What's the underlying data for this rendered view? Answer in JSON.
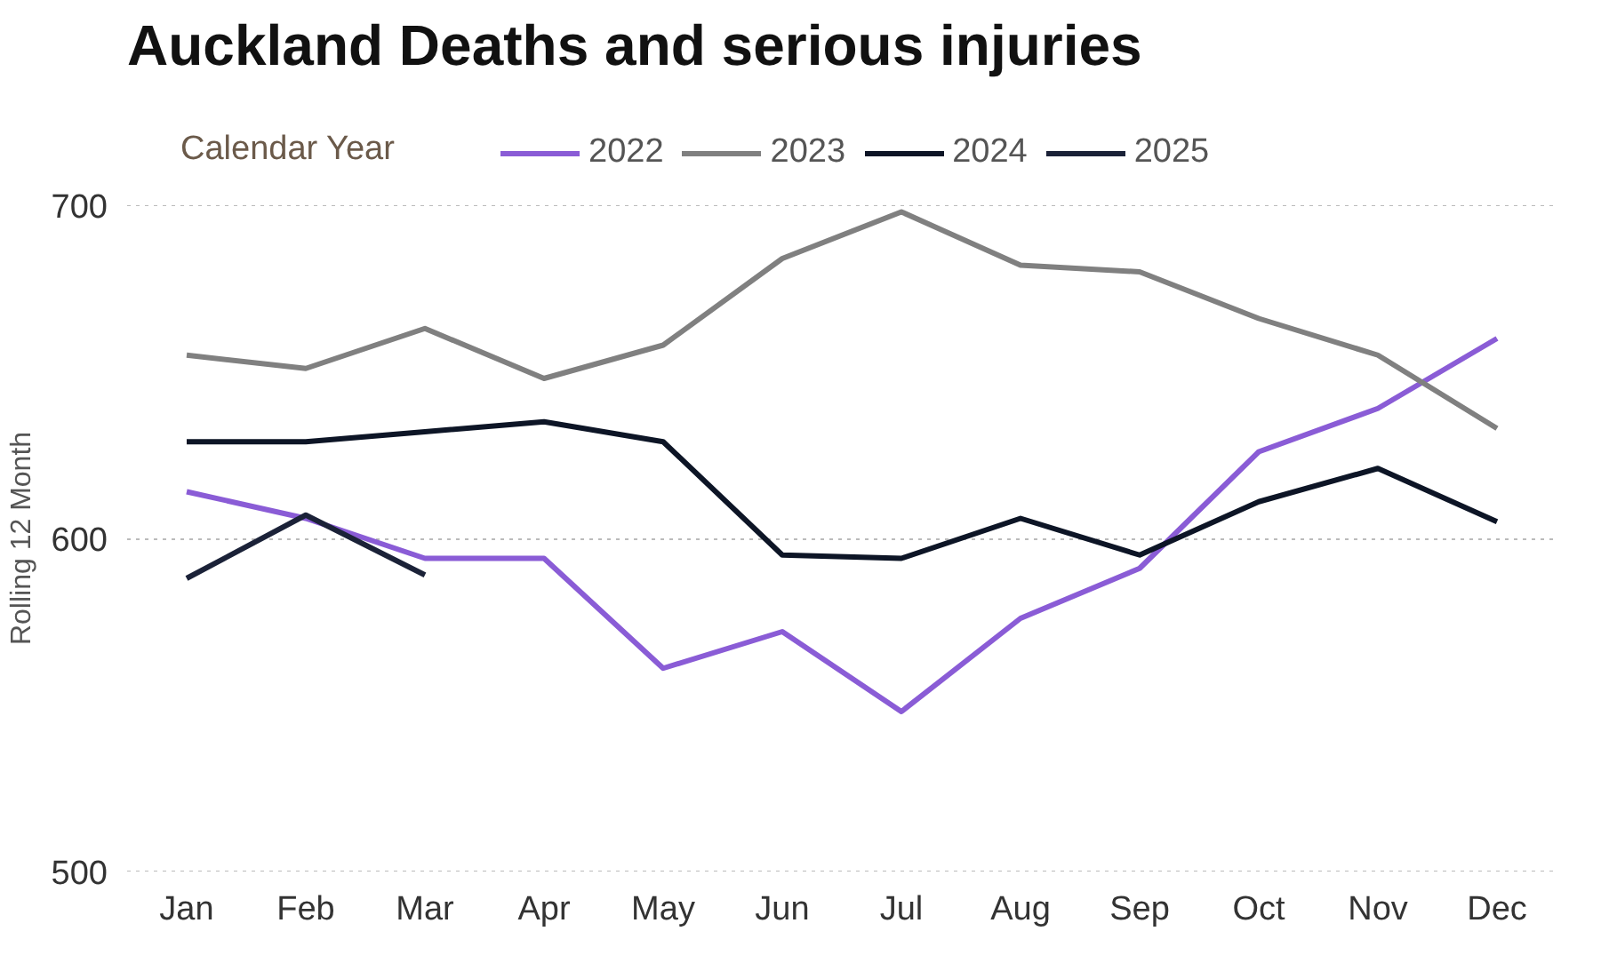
{
  "chart_data": {
    "type": "line",
    "title": "Auckland Deaths and serious injuries",
    "ylabel": "Rolling 12 Month",
    "legend_title": "Calendar Year",
    "categories": [
      "Jan",
      "Feb",
      "Mar",
      "Apr",
      "May",
      "Jun",
      "Jul",
      "Aug",
      "Sep",
      "Oct",
      "Nov",
      "Dec"
    ],
    "ylim": [
      500,
      700
    ],
    "yticks": [
      500,
      600,
      700
    ],
    "grid": "y",
    "legend": "top",
    "series": [
      {
        "name": "2022",
        "color": "#8a5cd6",
        "values": [
          614,
          606,
          594,
          594,
          561,
          572,
          548,
          576,
          591,
          626,
          639,
          660
        ]
      },
      {
        "name": "2023",
        "color": "#808080",
        "values": [
          655,
          651,
          663,
          648,
          658,
          684,
          698,
          682,
          680,
          666,
          655,
          633
        ]
      },
      {
        "name": "2024",
        "color": "#0d1526",
        "values": [
          629,
          629,
          632,
          635,
          629,
          595,
          594,
          606,
          595,
          611,
          621,
          605
        ]
      },
      {
        "name": "2025",
        "color": "#1b2238",
        "values": [
          588,
          607,
          589,
          null,
          null,
          null,
          null,
          null,
          null,
          null,
          null,
          null
        ]
      }
    ]
  }
}
